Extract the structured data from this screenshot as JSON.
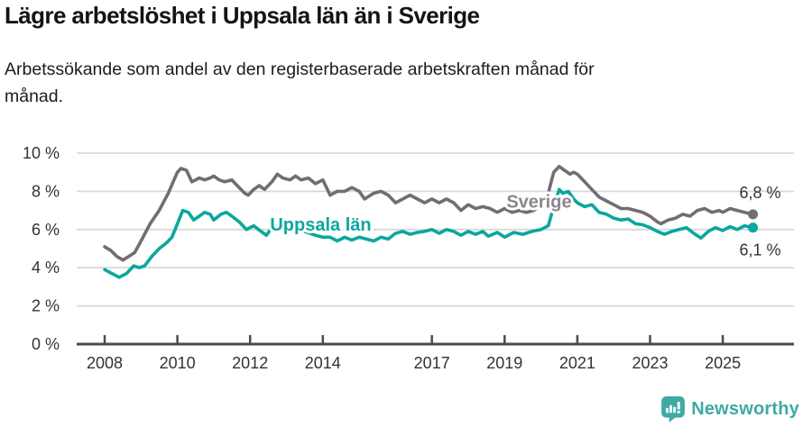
{
  "header": {
    "title": "Lägre arbetslöshet i Uppsala län än i Sverige",
    "subtitle_line1": "Arbetssökande som andel av den registerbaserade arbetskraften månad för",
    "subtitle_line2": "månad."
  },
  "chart_data": {
    "type": "line",
    "title": "Lägre arbetslöshet i Uppsala län än i Sverige",
    "subtitle": "Arbetssökande som andel av den registerbaserade arbetskraften månad för månad.",
    "grid": true,
    "legend_position": "inline-labels",
    "x_axis": {
      "range": [
        2007.2,
        2027.0
      ],
      "ticks": [
        2008,
        2010,
        2012,
        2014,
        2017,
        2019,
        2021,
        2023,
        2025
      ],
      "labels": [
        "2008",
        "2010",
        "2012",
        "2014",
        "2017",
        "2019",
        "2021",
        "2023",
        "2025"
      ]
    },
    "y_axis": {
      "range": [
        0,
        10
      ],
      "ticks": [
        0,
        2,
        4,
        6,
        8,
        10
      ],
      "labels": [
        "0 %",
        "2 %",
        "4 %",
        "6 %",
        "8 %",
        "10 %"
      ],
      "tick_color": "#333333",
      "grid_color": "#d9d9d9",
      "axis_color": "#4a4a4a"
    },
    "series": [
      {
        "name": "Sverige",
        "color": "#716d75",
        "label_color": "#8b878e",
        "end_label": "6,8 %",
        "end_label_position": "above",
        "label_anchor": {
          "year": 2019.05,
          "value": 7.15
        },
        "points": [
          [
            2008.0,
            5.1
          ],
          [
            2008.17,
            4.9
          ],
          [
            2008.33,
            4.6
          ],
          [
            2008.5,
            4.4
          ],
          [
            2008.67,
            4.6
          ],
          [
            2008.83,
            4.8
          ],
          [
            2009.0,
            5.4
          ],
          [
            2009.25,
            6.3
          ],
          [
            2009.5,
            7.0
          ],
          [
            2009.75,
            7.9
          ],
          [
            2010.0,
            9.0
          ],
          [
            2010.1,
            9.2
          ],
          [
            2010.25,
            9.1
          ],
          [
            2010.4,
            8.5
          ],
          [
            2010.6,
            8.7
          ],
          [
            2010.75,
            8.6
          ],
          [
            2010.9,
            8.7
          ],
          [
            2011.0,
            8.8
          ],
          [
            2011.15,
            8.6
          ],
          [
            2011.3,
            8.5
          ],
          [
            2011.5,
            8.6
          ],
          [
            2011.7,
            8.2
          ],
          [
            2011.85,
            7.9
          ],
          [
            2011.95,
            7.8
          ],
          [
            2012.1,
            8.1
          ],
          [
            2012.25,
            8.3
          ],
          [
            2012.4,
            8.1
          ],
          [
            2012.6,
            8.5
          ],
          [
            2012.75,
            8.9
          ],
          [
            2012.9,
            8.7
          ],
          [
            2013.1,
            8.6
          ],
          [
            2013.25,
            8.8
          ],
          [
            2013.4,
            8.6
          ],
          [
            2013.6,
            8.7
          ],
          [
            2013.8,
            8.4
          ],
          [
            2014.0,
            8.6
          ],
          [
            2014.2,
            7.8
          ],
          [
            2014.4,
            8.0
          ],
          [
            2014.6,
            8.0
          ],
          [
            2014.8,
            8.2
          ],
          [
            2015.0,
            8.0
          ],
          [
            2015.15,
            7.6
          ],
          [
            2015.4,
            7.9
          ],
          [
            2015.6,
            8.0
          ],
          [
            2015.8,
            7.8
          ],
          [
            2016.0,
            7.4
          ],
          [
            2016.2,
            7.6
          ],
          [
            2016.4,
            7.8
          ],
          [
            2016.6,
            7.6
          ],
          [
            2016.8,
            7.4
          ],
          [
            2017.0,
            7.6
          ],
          [
            2017.2,
            7.4
          ],
          [
            2017.4,
            7.6
          ],
          [
            2017.6,
            7.4
          ],
          [
            2017.8,
            7.0
          ],
          [
            2018.0,
            7.3
          ],
          [
            2018.2,
            7.1
          ],
          [
            2018.4,
            7.2
          ],
          [
            2018.6,
            7.1
          ],
          [
            2018.8,
            6.9
          ],
          [
            2019.0,
            7.1
          ],
          [
            2019.2,
            6.9
          ],
          [
            2019.4,
            7.0
          ],
          [
            2019.6,
            6.9
          ],
          [
            2019.8,
            7.0
          ],
          [
            2020.0,
            7.3
          ],
          [
            2020.2,
            7.9
          ],
          [
            2020.35,
            9.0
          ],
          [
            2020.5,
            9.3
          ],
          [
            2020.65,
            9.1
          ],
          [
            2020.8,
            8.9
          ],
          [
            2020.9,
            9.0
          ],
          [
            2021.0,
            8.9
          ],
          [
            2021.2,
            8.5
          ],
          [
            2021.4,
            8.1
          ],
          [
            2021.6,
            7.7
          ],
          [
            2021.8,
            7.5
          ],
          [
            2022.0,
            7.3
          ],
          [
            2022.2,
            7.1
          ],
          [
            2022.4,
            7.1
          ],
          [
            2022.6,
            7.0
          ],
          [
            2022.8,
            6.9
          ],
          [
            2023.0,
            6.7
          ],
          [
            2023.2,
            6.4
          ],
          [
            2023.3,
            6.3
          ],
          [
            2023.5,
            6.5
          ],
          [
            2023.7,
            6.6
          ],
          [
            2023.9,
            6.8
          ],
          [
            2024.1,
            6.7
          ],
          [
            2024.3,
            7.0
          ],
          [
            2024.5,
            7.1
          ],
          [
            2024.7,
            6.9
          ],
          [
            2024.9,
            7.0
          ],
          [
            2025.0,
            6.9
          ],
          [
            2025.2,
            7.1
          ],
          [
            2025.4,
            7.0
          ],
          [
            2025.6,
            6.9
          ],
          [
            2025.83,
            6.8
          ]
        ]
      },
      {
        "name": "Uppsala län",
        "color": "#0aa79e",
        "label_color": "#0aa79e",
        "end_label": "6,1 %",
        "end_label_position": "below",
        "label_anchor": {
          "year": 2012.55,
          "value": 5.95
        },
        "points": [
          [
            2008.0,
            3.9
          ],
          [
            2008.2,
            3.7
          ],
          [
            2008.4,
            3.5
          ],
          [
            2008.6,
            3.7
          ],
          [
            2008.8,
            4.1
          ],
          [
            2008.95,
            4.0
          ],
          [
            2009.1,
            4.1
          ],
          [
            2009.3,
            4.6
          ],
          [
            2009.5,
            5.0
          ],
          [
            2009.7,
            5.3
          ],
          [
            2009.85,
            5.6
          ],
          [
            2010.0,
            6.3
          ],
          [
            2010.15,
            7.0
          ],
          [
            2010.3,
            6.9
          ],
          [
            2010.45,
            6.5
          ],
          [
            2010.6,
            6.7
          ],
          [
            2010.75,
            6.9
          ],
          [
            2010.9,
            6.8
          ],
          [
            2011.0,
            6.5
          ],
          [
            2011.2,
            6.8
          ],
          [
            2011.35,
            6.9
          ],
          [
            2011.5,
            6.7
          ],
          [
            2011.7,
            6.4
          ],
          [
            2011.9,
            6.0
          ],
          [
            2012.1,
            6.2
          ],
          [
            2012.3,
            5.9
          ],
          [
            2012.45,
            5.7
          ],
          [
            2012.6,
            6.1
          ],
          [
            2012.8,
            6.1
          ],
          [
            2013.0,
            6.0
          ],
          [
            2013.2,
            6.1
          ],
          [
            2013.5,
            5.9
          ],
          [
            2013.8,
            5.7
          ],
          [
            2014.0,
            5.6
          ],
          [
            2014.2,
            5.6
          ],
          [
            2014.4,
            5.4
          ],
          [
            2014.6,
            5.6
          ],
          [
            2014.8,
            5.45
          ],
          [
            2015.0,
            5.6
          ],
          [
            2015.2,
            5.5
          ],
          [
            2015.4,
            5.4
          ],
          [
            2015.6,
            5.6
          ],
          [
            2015.8,
            5.5
          ],
          [
            2016.0,
            5.8
          ],
          [
            2016.2,
            5.9
          ],
          [
            2016.4,
            5.75
          ],
          [
            2016.6,
            5.85
          ],
          [
            2016.8,
            5.9
          ],
          [
            2017.0,
            6.0
          ],
          [
            2017.2,
            5.8
          ],
          [
            2017.4,
            6.0
          ],
          [
            2017.6,
            5.9
          ],
          [
            2017.8,
            5.7
          ],
          [
            2018.0,
            5.9
          ],
          [
            2018.2,
            5.75
          ],
          [
            2018.4,
            5.9
          ],
          [
            2018.55,
            5.65
          ],
          [
            2018.8,
            5.85
          ],
          [
            2019.0,
            5.6
          ],
          [
            2019.25,
            5.85
          ],
          [
            2019.5,
            5.75
          ],
          [
            2019.75,
            5.9
          ],
          [
            2020.0,
            6.0
          ],
          [
            2020.2,
            6.2
          ],
          [
            2020.35,
            7.2
          ],
          [
            2020.5,
            8.1
          ],
          [
            2020.6,
            7.9
          ],
          [
            2020.75,
            8.0
          ],
          [
            2020.9,
            7.6
          ],
          [
            2021.0,
            7.4
          ],
          [
            2021.2,
            7.2
          ],
          [
            2021.4,
            7.3
          ],
          [
            2021.6,
            6.9
          ],
          [
            2021.8,
            6.8
          ],
          [
            2022.0,
            6.6
          ],
          [
            2022.2,
            6.5
          ],
          [
            2022.4,
            6.55
          ],
          [
            2022.6,
            6.3
          ],
          [
            2022.8,
            6.25
          ],
          [
            2023.0,
            6.1
          ],
          [
            2023.2,
            5.9
          ],
          [
            2023.4,
            5.75
          ],
          [
            2023.6,
            5.9
          ],
          [
            2023.8,
            6.0
          ],
          [
            2024.0,
            6.1
          ],
          [
            2024.2,
            5.8
          ],
          [
            2024.4,
            5.55
          ],
          [
            2024.6,
            5.9
          ],
          [
            2024.8,
            6.1
          ],
          [
            2025.0,
            5.95
          ],
          [
            2025.2,
            6.15
          ],
          [
            2025.4,
            6.0
          ],
          [
            2025.6,
            6.2
          ],
          [
            2025.83,
            6.1
          ]
        ]
      }
    ]
  },
  "footer": {
    "brand": "Newsworthy",
    "brand_color": "#3fa9a5",
    "logo_icon": "bar-chart-speech-bubble-icon"
  }
}
